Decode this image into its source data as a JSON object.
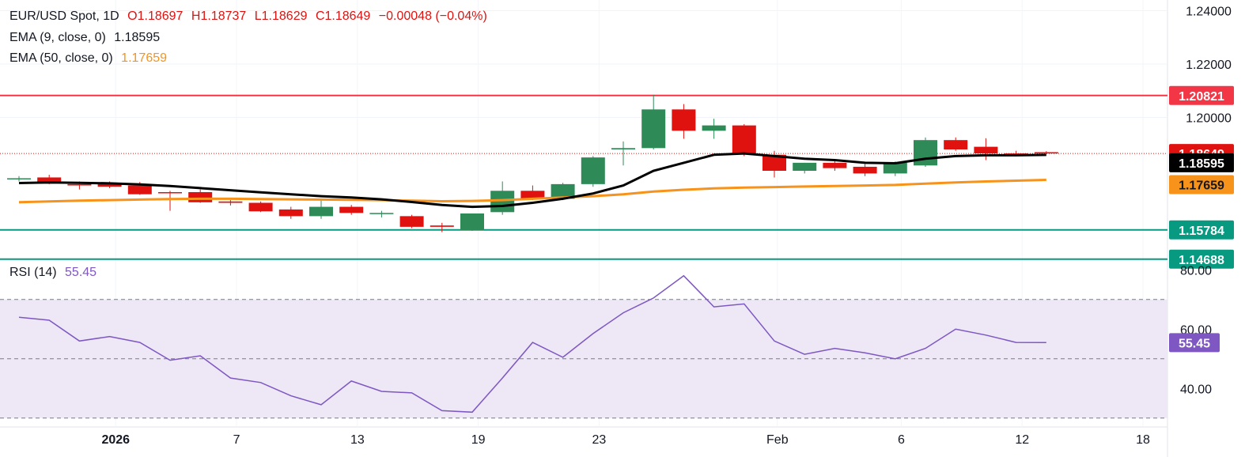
{
  "legend": {
    "symbol": "EUR/USD Spot, 1D",
    "open": "O1.18697",
    "high": "H1.18737",
    "low": "L1.18629",
    "close": "C1.18649",
    "change": "−0.00048 (−0.04%)",
    "ema9_label": "EMA (9, close, 0)",
    "ema9_value": "1.18595",
    "ema50_label": "EMA (50, close, 0)",
    "ema50_value": "1.17659",
    "rsi_label": "RSI (14)",
    "rsi_value": "55.45"
  },
  "colors": {
    "up": "#2e8b57",
    "down": "#e0120f",
    "ema9": "#000000",
    "ema50": "#f7931a",
    "resistance": "#f23645",
    "support": "#089981",
    "rsi": "#7e57c2",
    "rsi_band": "#ede7f6"
  },
  "chart_data": [
    {
      "type": "candlestick",
      "ylim": [
        1.148,
        1.244
      ],
      "y_ticks": [
        "1.24000",
        "1.22000",
        "1.20000"
      ],
      "x_labels": [
        "2026",
        "7",
        "13",
        "19",
        "23",
        "Feb",
        "6",
        "12",
        "18"
      ],
      "candles": [
        {
          "o": 1.177,
          "h": 1.178,
          "l": 1.176,
          "c": 1.1772
        },
        {
          "o": 1.1775,
          "h": 1.1785,
          "l": 1.175,
          "c": 1.1752
        },
        {
          "o": 1.175,
          "h": 1.176,
          "l": 1.173,
          "c": 1.1745
        },
        {
          "o": 1.175,
          "h": 1.176,
          "l": 1.1735,
          "c": 1.174
        },
        {
          "o": 1.1745,
          "h": 1.1758,
          "l": 1.171,
          "c": 1.1712
        },
        {
          "o": 1.172,
          "h": 1.1725,
          "l": 1.165,
          "c": 1.1718
        },
        {
          "o": 1.172,
          "h": 1.173,
          "l": 1.168,
          "c": 1.1682
        },
        {
          "o": 1.1685,
          "h": 1.169,
          "l": 1.167,
          "c": 1.168
        },
        {
          "o": 1.168,
          "h": 1.1685,
          "l": 1.1645,
          "c": 1.1648
        },
        {
          "o": 1.1655,
          "h": 1.1665,
          "l": 1.162,
          "c": 1.163
        },
        {
          "o": 1.163,
          "h": 1.1695,
          "l": 1.162,
          "c": 1.1665
        },
        {
          "o": 1.1665,
          "h": 1.1672,
          "l": 1.1635,
          "c": 1.1642
        },
        {
          "o": 1.164,
          "h": 1.165,
          "l": 1.1625,
          "c": 1.1642
        },
        {
          "o": 1.163,
          "h": 1.1635,
          "l": 1.1585,
          "c": 1.159
        },
        {
          "o": 1.1595,
          "h": 1.1605,
          "l": 1.157,
          "c": 1.159
        },
        {
          "o": 1.1578,
          "h": 1.164,
          "l": 1.1575,
          "c": 1.164
        },
        {
          "o": 1.1645,
          "h": 1.176,
          "l": 1.1635,
          "c": 1.1725
        },
        {
          "o": 1.1725,
          "h": 1.1745,
          "l": 1.169,
          "c": 1.1695
        },
        {
          "o": 1.1695,
          "h": 1.1755,
          "l": 1.169,
          "c": 1.175
        },
        {
          "o": 1.175,
          "h": 1.1855,
          "l": 1.174,
          "c": 1.185
        },
        {
          "o": 1.188,
          "h": 1.191,
          "l": 1.182,
          "c": 1.1885
        },
        {
          "o": 1.1885,
          "h": 1.2085,
          "l": 1.188,
          "c": 1.203
        },
        {
          "o": 1.203,
          "h": 1.205,
          "l": 1.192,
          "c": 1.195
        },
        {
          "o": 1.195,
          "h": 1.1995,
          "l": 1.192,
          "c": 1.197
        },
        {
          "o": 1.197,
          "h": 1.1975,
          "l": 1.1855,
          "c": 1.1865
        },
        {
          "o": 1.186,
          "h": 1.1875,
          "l": 1.1775,
          "c": 1.18
        },
        {
          "o": 1.18,
          "h": 1.183,
          "l": 1.179,
          "c": 1.183
        },
        {
          "o": 1.183,
          "h": 1.184,
          "l": 1.18,
          "c": 1.181
        },
        {
          "o": 1.1815,
          "h": 1.1825,
          "l": 1.178,
          "c": 1.179
        },
        {
          "o": 1.179,
          "h": 1.1835,
          "l": 1.178,
          "c": 1.183
        },
        {
          "o": 1.182,
          "h": 1.1925,
          "l": 1.1815,
          "c": 1.1915
        },
        {
          "o": 1.1915,
          "h": 1.1925,
          "l": 1.1875,
          "c": 1.188
        },
        {
          "o": 1.189,
          "h": 1.1922,
          "l": 1.184,
          "c": 1.1865
        },
        {
          "o": 1.1865,
          "h": 1.1875,
          "l": 1.1855,
          "c": 1.186
        },
        {
          "o": 1.18697,
          "h": 1.18737,
          "l": 1.18629,
          "c": 1.18649
        }
      ],
      "ema9": [
        1.1754,
        1.1756,
        1.1755,
        1.1753,
        1.1749,
        1.1743,
        1.1735,
        1.1727,
        1.1719,
        1.1712,
        1.1705,
        1.17,
        1.1693,
        1.1683,
        1.1672,
        1.1665,
        1.1668,
        1.168,
        1.1695,
        1.1715,
        1.1745,
        1.18,
        1.183,
        1.186,
        1.1865,
        1.1855,
        1.1845,
        1.184,
        1.183,
        1.1828,
        1.1845,
        1.1855,
        1.1858,
        1.1858,
        1.18595
      ],
      "ema50": [
        1.1682,
        1.1685,
        1.1688,
        1.169,
        1.1692,
        1.1694,
        1.1695,
        1.1695,
        1.1694,
        1.1693,
        1.1692,
        1.1691,
        1.169,
        1.1688,
        1.1686,
        1.1687,
        1.169,
        1.1695,
        1.17,
        1.1705,
        1.1712,
        1.1722,
        1.1729,
        1.1734,
        1.1737,
        1.1739,
        1.1741,
        1.1743,
        1.1745,
        1.1747,
        1.1752,
        1.1756,
        1.176,
        1.1763,
        1.17659
      ],
      "levels": [
        {
          "value": 1.20821,
          "label": "1.20821",
          "role": "resistance"
        },
        {
          "value": 1.15784,
          "label": "1.15784",
          "role": "support"
        },
        {
          "value": 1.14688,
          "label": "1.14688",
          "role": "support"
        }
      ],
      "price_tags": [
        {
          "value": 1.18649,
          "label": "1.18649"
        },
        {
          "value": 1.18595,
          "label": "1.18595"
        },
        {
          "value": 1.17659,
          "label": "1.17659"
        }
      ]
    },
    {
      "type": "line",
      "name": "RSI (14)",
      "ylim": [
        27,
        83
      ],
      "y_ticks": [
        "80.00",
        "60.00",
        "40.00"
      ],
      "bands": [
        30,
        50,
        70
      ],
      "values": [
        64,
        63,
        56,
        57.5,
        55.5,
        49.5,
        51,
        43.5,
        42,
        37.5,
        34.5,
        42.5,
        39,
        38.5,
        32.5,
        32,
        43.5,
        55.5,
        50.5,
        58.5,
        65.5,
        70.5,
        78,
        67.5,
        68.5,
        56,
        51.5,
        53.5,
        52,
        50,
        53.5,
        60,
        58,
        55.5,
        55.45
      ]
    }
  ]
}
